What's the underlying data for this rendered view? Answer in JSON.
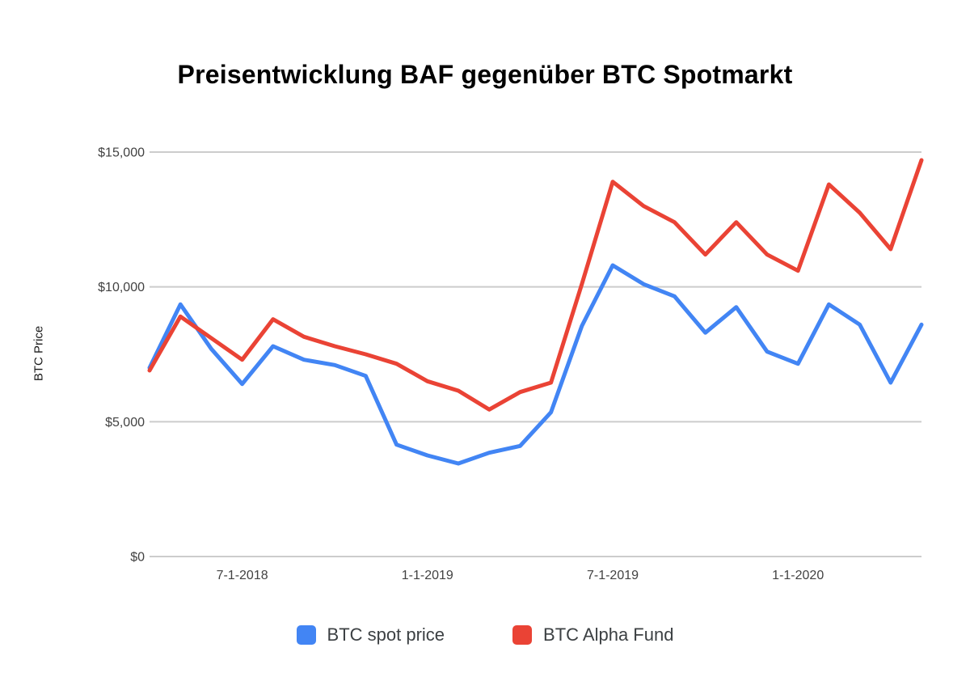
{
  "chart_data": {
    "type": "line",
    "title": "Preisentwicklung BAF gegenüber BTC Spotmarkt",
    "xlabel": "",
    "ylabel": "BTC Price",
    "ylim": [
      0,
      15000
    ],
    "grid": true,
    "grid_color": "#cccccc",
    "axis_text_color": "#424242",
    "legend_position": "bottom",
    "x": [
      "4-1-2018",
      "5-1-2018",
      "6-1-2018",
      "7-1-2018",
      "8-1-2018",
      "9-1-2018",
      "10-1-2018",
      "11-1-2018",
      "12-1-2018",
      "1-1-2019",
      "2-1-2019",
      "3-1-2019",
      "4-1-2019",
      "5-1-2019",
      "6-1-2019",
      "7-1-2019",
      "8-1-2019",
      "9-1-2019",
      "10-1-2019",
      "11-1-2019",
      "12-1-2019",
      "1-1-2020",
      "2-1-2020",
      "3-1-2020",
      "4-1-2020",
      "5-1-2020"
    ],
    "x_tick_labels": [
      {
        "index": 3,
        "label": "7-1-2018"
      },
      {
        "index": 9,
        "label": "1-1-2019"
      },
      {
        "index": 15,
        "label": "7-1-2019"
      },
      {
        "index": 21,
        "label": "1-1-2020"
      }
    ],
    "y_ticks": [
      {
        "value": 0,
        "label": "$0"
      },
      {
        "value": 5000,
        "label": "$5,000"
      },
      {
        "value": 10000,
        "label": "$10,000"
      },
      {
        "value": 15000,
        "label": "$15,000"
      }
    ],
    "series": [
      {
        "name": "BTC spot price",
        "color": "#4285f4",
        "values": [
          7000,
          9350,
          7700,
          6400,
          7800,
          7300,
          7100,
          6700,
          4150,
          3750,
          3450,
          3850,
          4100,
          5350,
          8550,
          10800,
          10100,
          9650,
          8300,
          9250,
          7600,
          7150,
          9350,
          8600,
          6450,
          8600
        ]
      },
      {
        "name": "BTC Alpha Fund",
        "color": "#ea4335",
        "values": [
          6900,
          8900,
          8100,
          7300,
          8800,
          8150,
          7800,
          7500,
          7150,
          6500,
          6150,
          5450,
          6100,
          6450,
          10100,
          13900,
          13000,
          12400,
          11200,
          12400,
          11200,
          10600,
          13800,
          12750,
          11400,
          14700
        ]
      }
    ]
  }
}
